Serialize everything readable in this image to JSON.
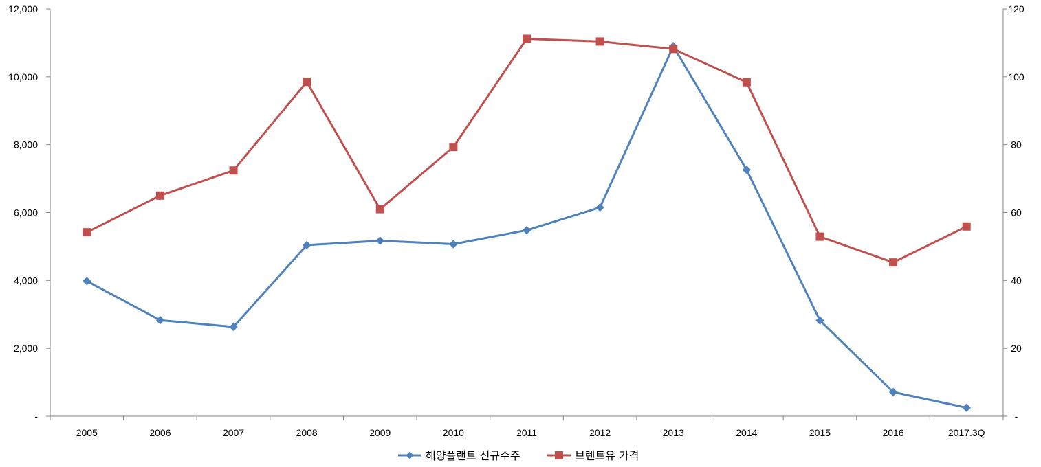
{
  "chart_data": {
    "type": "line",
    "categories": [
      "2005",
      "2006",
      "2007",
      "2008",
      "2009",
      "2010",
      "2011",
      "2012",
      "2013",
      "2014",
      "2015",
      "2016",
      "2017.3Q"
    ],
    "y_left": {
      "range": [
        0,
        12000
      ],
      "ticks": [
        0,
        2000,
        4000,
        6000,
        8000,
        10000,
        12000
      ],
      "tick_labels": [
        "-",
        "2,000",
        "4,000",
        "6,000",
        "8,000",
        "10,000",
        "12,000"
      ]
    },
    "y_right": {
      "range": [
        0,
        120
      ],
      "ticks": [
        0,
        20,
        40,
        60,
        80,
        100,
        120
      ],
      "tick_labels": [
        "-",
        "20",
        "40",
        "60",
        "80",
        "100",
        "120"
      ]
    },
    "series": [
      {
        "name": "해양플랜트 신규수주",
        "axis": "left",
        "color": "#4F81BD",
        "marker": "diamond",
        "values": [
          3980,
          2830,
          2630,
          5040,
          5170,
          5070,
          5480,
          6150,
          10900,
          7260,
          2820,
          710,
          250
        ]
      },
      {
        "name": "브렌트유 가격",
        "axis": "right",
        "color": "#C0504D",
        "marker": "square",
        "values": [
          54.2,
          65.0,
          72.4,
          98.5,
          61.0,
          79.3,
          111.2,
          110.4,
          108.2,
          98.4,
          52.9,
          45.3,
          55.9
        ]
      }
    ],
    "grid": false,
    "legend_position": "bottom"
  }
}
